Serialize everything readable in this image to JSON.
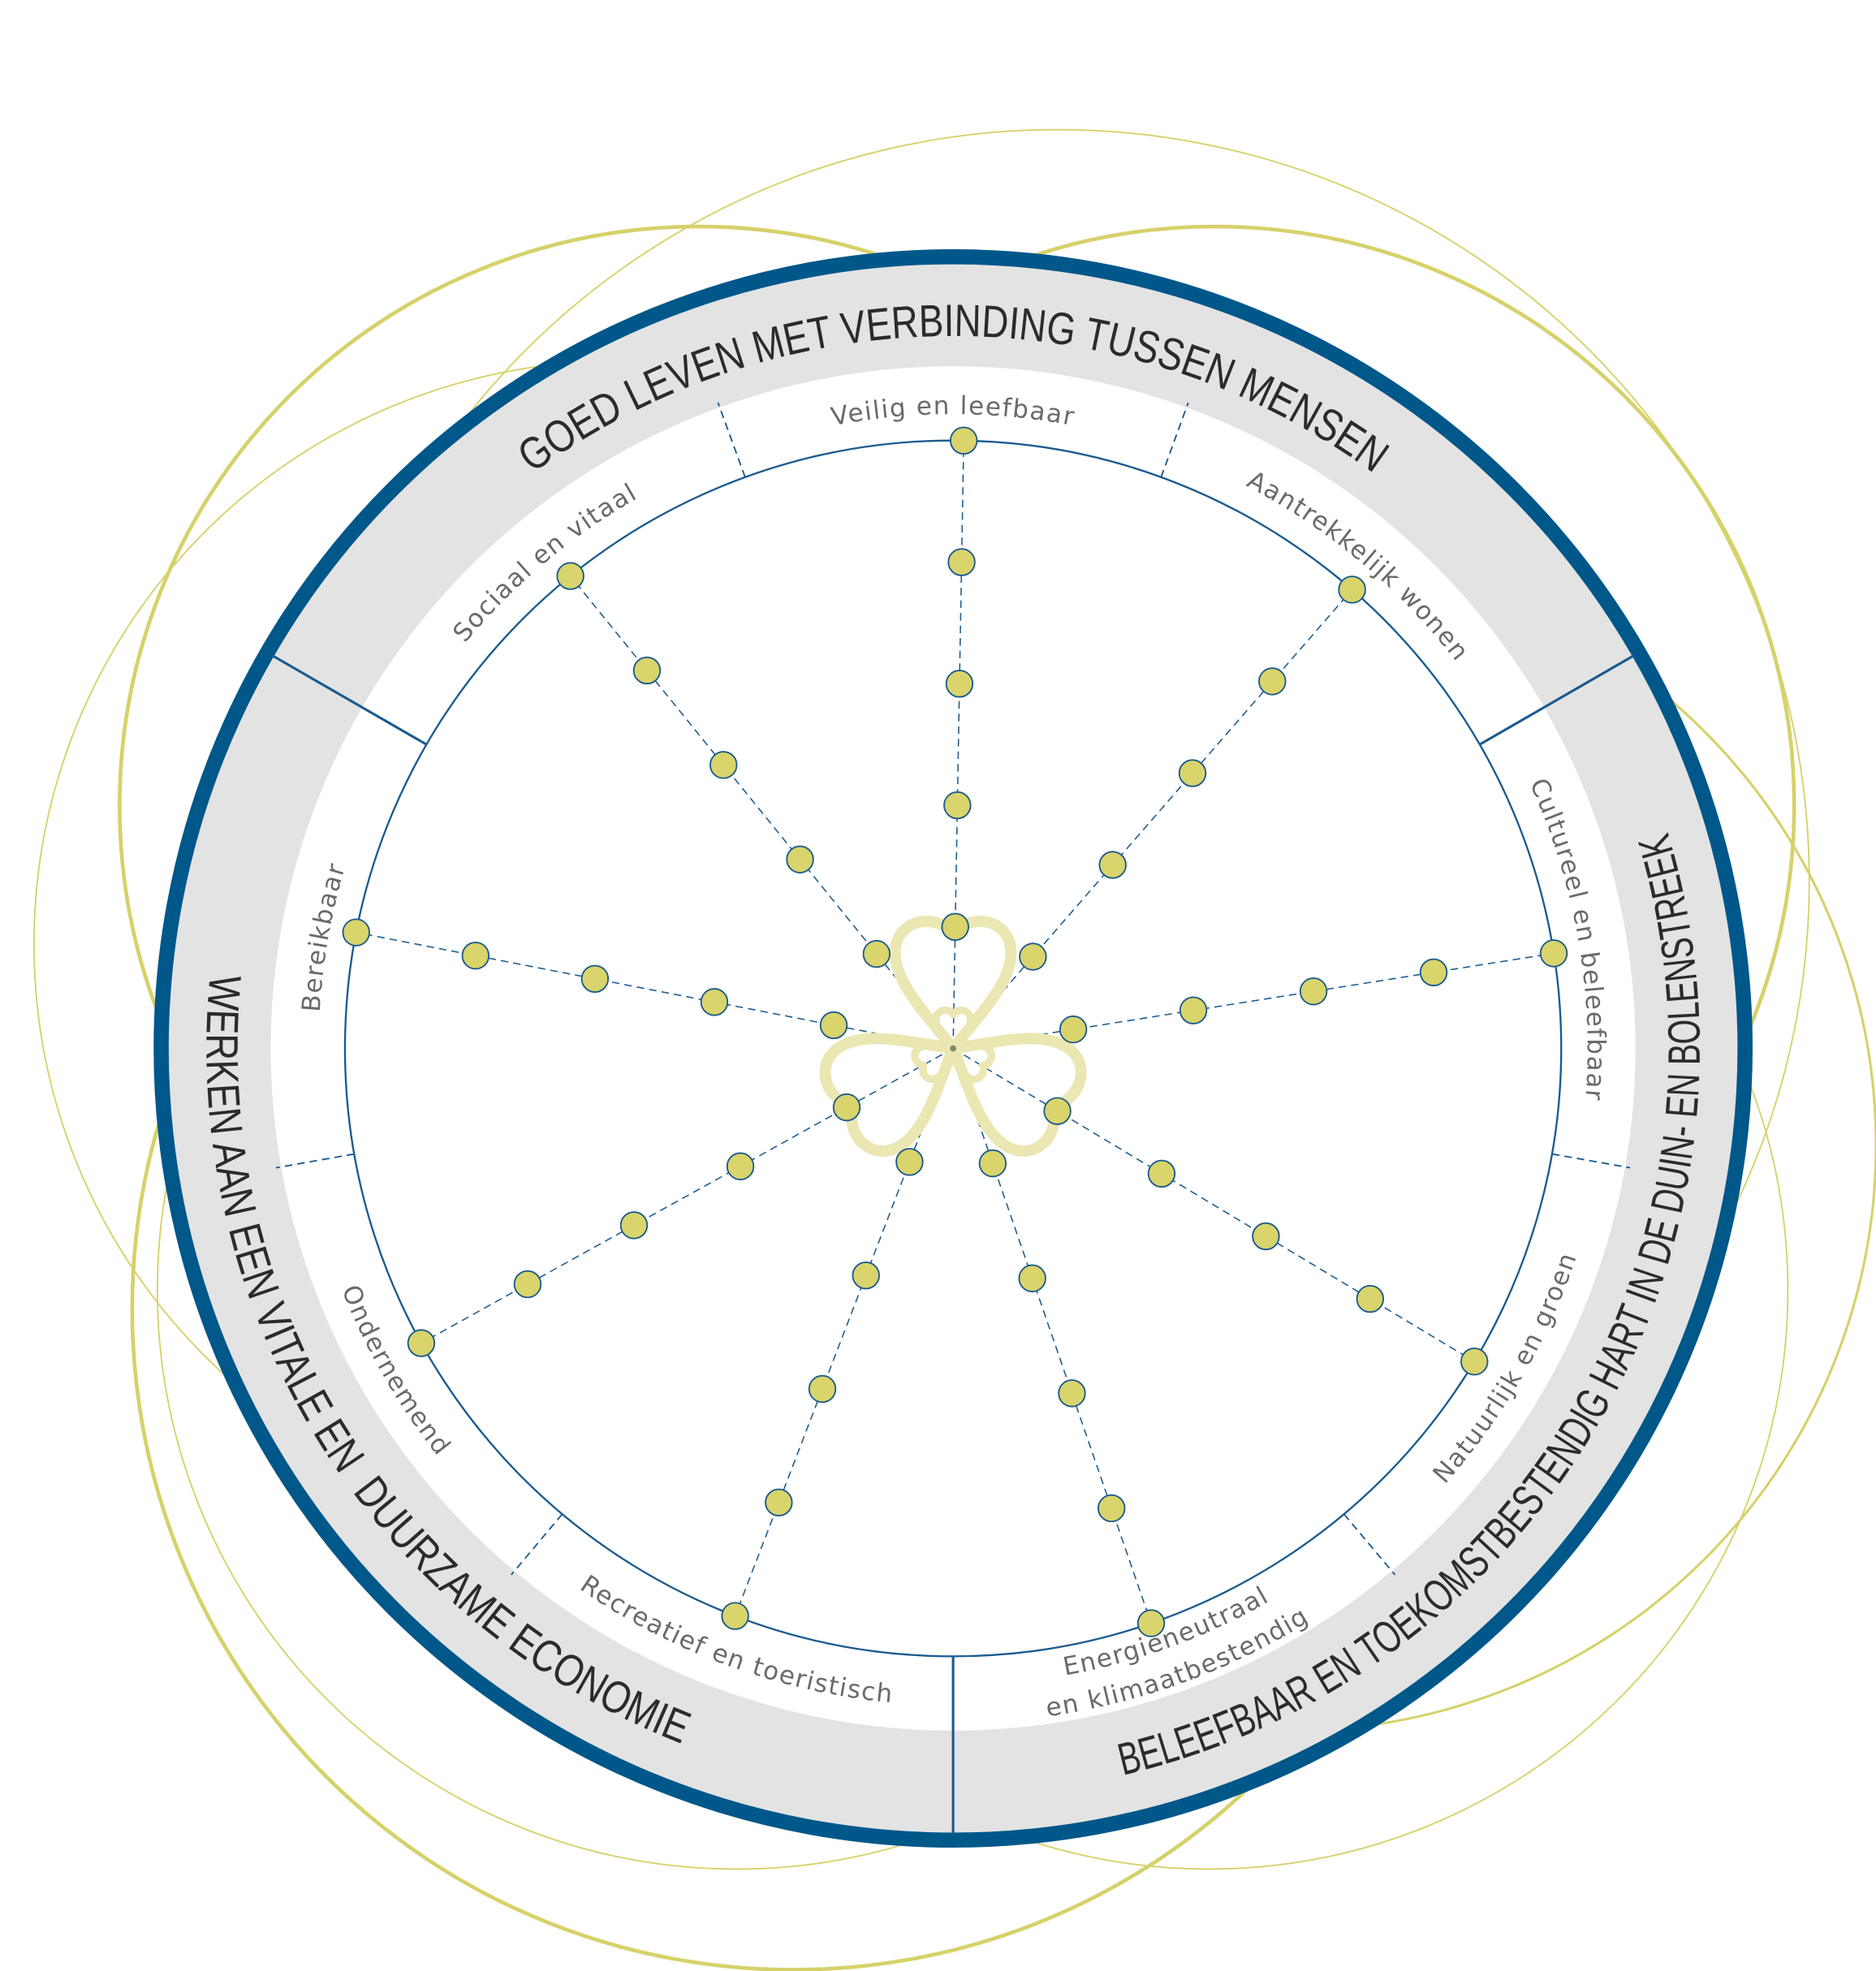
{
  "themes": [
    {
      "label": "GOED LEVEN MET VERBINDING TUSSEN MENSEN"
    },
    {
      "label": "BELEEFBAAR EN TOEKOMSTBESTENDIG HART IN DE DUIN- EN BOLENSTREEK"
    },
    {
      "label": "WERKEN AAN EEN VITALE EN  DUURZAME ECONOMIE"
    }
  ],
  "sectors": [
    {
      "label": "Veilig en leefbaar"
    },
    {
      "label": "Aantrekkelijk wonen"
    },
    {
      "label": "Cultureel en beleefbaar"
    },
    {
      "label": "Natuurlijk en groen"
    },
    {
      "label": "Energieneutraal",
      "label2": "en klimaatbestendig"
    },
    {
      "label": "Recreatief en toeristisch"
    },
    {
      "label": "Ondernemend"
    },
    {
      "label": "Bereikbaar"
    },
    {
      "label": "Sociaal en vitaal"
    }
  ],
  "dots_per_spoke": 5,
  "colors": {
    "ring": "#00578a",
    "band": "#e3e3e3",
    "inner_line": "#1a5a8e",
    "dot_fill": "#d9d46c",
    "dot_stroke": "#1c5a8c",
    "background_circles": "#d6d16a",
    "trefoil": "#ebe7b3"
  }
}
